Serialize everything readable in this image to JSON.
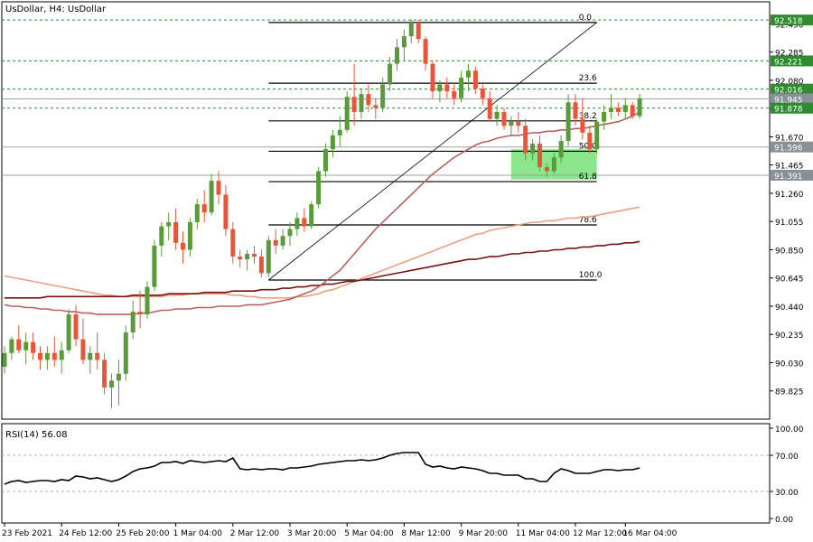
{
  "chart_data": [
    {
      "type": "candlestick",
      "title": "UsDollar, H4:  UsDollar",
      "ylim": [
        89.62,
        92.65
      ],
      "yticks": [
        "92.490",
        "92.285",
        "92.080",
        "91.875",
        "91.670",
        "91.465",
        "91.260",
        "91.055",
        "90.850",
        "90.645",
        "90.440",
        "90.235",
        "90.030",
        "89.825"
      ],
      "xlabels": [
        "23 Feb 2021",
        "24 Feb 12:00",
        "25 Feb 20:00",
        "1 Mar 04:00",
        "2 Mar 12:00",
        "3 Mar 20:00",
        "5 Mar 04:00",
        "8 Mar 12:00",
        "9 Mar 20:00",
        "11 Mar 04:00",
        "12 Mar 12:00",
        "16 Mar 04:00"
      ],
      "candles": [
        [
          90.0,
          90.15,
          89.95,
          90.1
        ],
        [
          90.1,
          90.22,
          90.05,
          90.2
        ],
        [
          90.2,
          90.3,
          90.1,
          90.12
        ],
        [
          90.12,
          90.25,
          90.02,
          90.18
        ],
        [
          90.18,
          90.25,
          90.05,
          90.1
        ],
        [
          90.1,
          90.15,
          89.98,
          90.05
        ],
        [
          90.05,
          90.15,
          89.98,
          90.1
        ],
        [
          90.1,
          90.22,
          90.0,
          90.05
        ],
        [
          90.05,
          90.18,
          89.95,
          90.12
        ],
        [
          90.12,
          90.42,
          90.1,
          90.38
        ],
        [
          90.38,
          90.45,
          90.15,
          90.2
        ],
        [
          90.2,
          90.35,
          90.02,
          90.05
        ],
        [
          90.05,
          90.15,
          89.95,
          90.1
        ],
        [
          90.1,
          90.25,
          89.98,
          90.05
        ],
        [
          90.05,
          90.1,
          89.8,
          89.85
        ],
        [
          89.85,
          89.95,
          89.7,
          89.9
        ],
        [
          89.9,
          90.05,
          89.72,
          89.95
        ],
        [
          89.95,
          90.3,
          89.9,
          90.25
        ],
        [
          90.25,
          90.48,
          90.2,
          90.4
        ],
        [
          90.4,
          90.55,
          90.28,
          90.38
        ],
        [
          90.38,
          90.62,
          90.35,
          90.58
        ],
        [
          90.58,
          90.92,
          90.55,
          90.88
        ],
        [
          90.88,
          91.05,
          90.8,
          91.02
        ],
        [
          91.02,
          91.12,
          90.92,
          91.05
        ],
        [
          91.05,
          91.15,
          90.85,
          90.9
        ],
        [
          90.9,
          90.98,
          90.75,
          90.85
        ],
        [
          90.85,
          91.08,
          90.8,
          91.05
        ],
        [
          91.05,
          91.22,
          91.0,
          91.18
        ],
        [
          91.18,
          91.28,
          91.05,
          91.12
        ],
        [
          91.12,
          91.4,
          91.1,
          91.35
        ],
        [
          91.35,
          91.42,
          91.18,
          91.25
        ],
        [
          91.25,
          91.32,
          90.95,
          91.0
        ],
        [
          91.0,
          91.05,
          90.75,
          90.8
        ],
        [
          90.8,
          90.85,
          90.72,
          90.78
        ],
        [
          90.78,
          90.85,
          90.7,
          90.82
        ],
        [
          90.82,
          90.88,
          90.75,
          90.8
        ],
        [
          90.8,
          90.85,
          90.65,
          90.68
        ],
        [
          90.68,
          90.95,
          90.65,
          90.92
        ],
        [
          90.92,
          91.0,
          90.82,
          90.88
        ],
        [
          90.88,
          91.0,
          90.85,
          90.95
        ],
        [
          90.95,
          91.05,
          90.88,
          91.0
        ],
        [
          91.0,
          91.12,
          90.95,
          91.08
        ],
        [
          91.08,
          91.15,
          90.98,
          91.02
        ],
        [
          91.02,
          91.2,
          91.0,
          91.18
        ],
        [
          91.18,
          91.45,
          91.15,
          91.42
        ],
        [
          91.42,
          91.62,
          91.38,
          91.58
        ],
        [
          91.58,
          91.72,
          91.52,
          91.68
        ],
        [
          91.68,
          91.82,
          91.6,
          91.72
        ],
        [
          91.72,
          92.0,
          91.7,
          91.96
        ],
        [
          91.96,
          92.2,
          91.75,
          91.85
        ],
        [
          91.85,
          92.02,
          91.8,
          91.98
        ],
        [
          91.98,
          92.05,
          91.85,
          91.9
        ],
        [
          91.9,
          91.95,
          91.8,
          91.88
        ],
        [
          91.88,
          92.1,
          91.85,
          92.05
        ],
        [
          92.05,
          92.25,
          92.0,
          92.2
        ],
        [
          92.2,
          92.38,
          92.15,
          92.32
        ],
        [
          92.32,
          92.45,
          92.22,
          92.4
        ],
        [
          92.4,
          92.52,
          92.35,
          92.5
        ],
        [
          92.5,
          92.52,
          92.35,
          92.38
        ],
        [
          92.38,
          92.4,
          92.15,
          92.2
        ],
        [
          92.2,
          92.22,
          91.95,
          92.0
        ],
        [
          92.0,
          92.08,
          91.92,
          92.05
        ],
        [
          92.05,
          92.1,
          91.95,
          92.0
        ],
        [
          92.0,
          92.05,
          91.9,
          91.95
        ],
        [
          91.95,
          92.15,
          91.92,
          92.1
        ],
        [
          92.1,
          92.2,
          92.0,
          92.15
        ],
        [
          92.15,
          92.18,
          91.98,
          92.02
        ],
        [
          92.02,
          92.05,
          91.9,
          91.95
        ],
        [
          91.95,
          92.0,
          91.78,
          91.8
        ],
        [
          91.8,
          91.9,
          91.75,
          91.85
        ],
        [
          91.85,
          91.88,
          91.72,
          91.75
        ],
        [
          91.75,
          91.82,
          91.68,
          91.78
        ],
        [
          91.78,
          91.85,
          91.7,
          91.75
        ],
        [
          91.75,
          91.8,
          91.5,
          91.55
        ],
        [
          91.55,
          91.65,
          91.5,
          91.62
        ],
        [
          91.62,
          91.68,
          91.42,
          91.45
        ],
        [
          91.45,
          91.48,
          91.38,
          91.42
        ],
        [
          91.42,
          91.55,
          91.4,
          91.52
        ],
        [
          91.52,
          91.68,
          91.48,
          91.64
        ],
        [
          91.64,
          91.98,
          91.6,
          91.92
        ],
        [
          91.92,
          91.98,
          91.75,
          91.8
        ],
        [
          91.8,
          91.95,
          91.65,
          91.7
        ],
        [
          91.7,
          91.75,
          91.55,
          91.58
        ],
        [
          91.58,
          91.8,
          91.55,
          91.78
        ],
        [
          91.78,
          91.9,
          91.72,
          91.85
        ],
        [
          91.85,
          91.98,
          91.8,
          91.88
        ],
        [
          91.88,
          91.92,
          91.82,
          91.85
        ],
        [
          91.85,
          91.95,
          91.8,
          91.9
        ],
        [
          91.9,
          91.92,
          91.8,
          91.82
        ],
        [
          91.82,
          91.98,
          91.8,
          91.95
        ]
      ],
      "series": [
        {
          "name": "",
          "color": "#e8a07e",
          "values": [
            90.66,
            90.65,
            90.64,
            90.63,
            90.62,
            90.61,
            90.6,
            90.59,
            90.58,
            90.57,
            90.56,
            90.55,
            90.54,
            90.53,
            90.52,
            90.52,
            90.51,
            90.51,
            90.51,
            90.51,
            90.51,
            90.51,
            90.51,
            90.52,
            90.52,
            90.52,
            90.53,
            90.53,
            90.53,
            90.53,
            90.53,
            90.53,
            90.52,
            90.52,
            90.51,
            90.51,
            90.5,
            90.5,
            90.5,
            90.5,
            90.5,
            90.51,
            90.51,
            90.52,
            90.53,
            90.55,
            90.56,
            90.58,
            90.6,
            90.62,
            90.64,
            90.66,
            90.68,
            90.7,
            90.72,
            90.74,
            90.76,
            90.78,
            90.8,
            90.82,
            90.84,
            90.86,
            90.88,
            90.9,
            90.92,
            90.94,
            90.96,
            90.97,
            90.99,
            91.0,
            91.01,
            91.02,
            91.03,
            91.04,
            91.05,
            91.05,
            91.06,
            91.06,
            91.07,
            91.08,
            91.08,
            91.09,
            91.09,
            91.1,
            91.11,
            91.12,
            91.13,
            91.14,
            91.15,
            91.16
          ]
        },
        {
          "name": "",
          "color": "#7a1010",
          "values": [
            90.5,
            90.5,
            90.5,
            90.5,
            90.5,
            90.5,
            90.51,
            90.51,
            90.51,
            90.51,
            90.51,
            90.51,
            90.51,
            90.51,
            90.51,
            90.51,
            90.51,
            90.51,
            90.52,
            90.52,
            90.52,
            90.52,
            90.52,
            90.53,
            90.53,
            90.53,
            90.53,
            90.53,
            90.54,
            90.54,
            90.54,
            90.54,
            90.55,
            90.55,
            90.55,
            90.55,
            90.56,
            90.56,
            90.56,
            90.57,
            90.57,
            90.58,
            90.58,
            90.59,
            90.59,
            90.6,
            90.6,
            90.61,
            90.62,
            90.62,
            90.63,
            90.64,
            90.65,
            90.66,
            90.67,
            90.68,
            90.69,
            90.7,
            90.71,
            90.72,
            90.73,
            90.74,
            90.75,
            90.76,
            90.77,
            90.78,
            90.78,
            90.79,
            90.8,
            90.8,
            90.81,
            90.82,
            90.82,
            90.83,
            90.83,
            90.84,
            90.84,
            90.85,
            90.85,
            90.86,
            90.86,
            90.87,
            90.87,
            90.88,
            90.88,
            90.89,
            90.89,
            90.9,
            90.9,
            90.91
          ]
        },
        {
          "name": "",
          "color": "#b86060",
          "values": [
            90.45,
            90.44,
            90.44,
            90.43,
            90.43,
            90.42,
            90.42,
            90.41,
            90.41,
            90.4,
            90.4,
            90.39,
            90.39,
            90.38,
            90.38,
            90.38,
            90.38,
            90.38,
            90.38,
            90.39,
            90.39,
            90.4,
            90.41,
            90.41,
            90.42,
            90.42,
            90.42,
            90.43,
            90.43,
            90.43,
            90.44,
            90.44,
            90.44,
            90.44,
            90.45,
            90.45,
            90.45,
            90.46,
            90.47,
            90.48,
            90.49,
            90.51,
            90.53,
            90.55,
            90.58,
            90.62,
            90.66,
            90.7,
            90.76,
            90.82,
            90.88,
            90.94,
            91.0,
            91.05,
            91.1,
            91.15,
            91.2,
            91.25,
            91.3,
            91.35,
            91.4,
            91.44,
            91.48,
            91.52,
            91.55,
            91.58,
            91.61,
            91.63,
            91.64,
            91.66,
            91.67,
            91.68,
            91.68,
            91.69,
            91.7,
            91.7,
            91.71,
            91.71,
            91.72,
            91.72,
            91.73,
            91.73,
            91.74,
            91.75,
            91.76,
            91.77,
            91.78,
            91.8,
            91.82,
            91.85
          ]
        }
      ],
      "fibonacci": {
        "low": 90.63,
        "high": 92.5,
        "levels": [
          {
            "label": "0.0",
            "ratio": 0.0
          },
          {
            "label": "23.6",
            "ratio": 0.236
          },
          {
            "label": "38.2",
            "ratio": 0.382
          },
          {
            "label": "50.0",
            "ratio": 0.5
          },
          {
            "label": "61.8",
            "ratio": 0.618
          },
          {
            "label": "78.6",
            "ratio": 0.786
          },
          {
            "label": "100.0",
            "ratio": 1.0
          }
        ]
      },
      "horizontal_lines": [
        {
          "value": 92.518,
          "label": "92.518",
          "color": "#2e8b2e"
        },
        {
          "value": 92.221,
          "label": "92.221",
          "color": "#2e8b2e"
        },
        {
          "value": 92.016,
          "label": "92.016",
          "color": "#2e8b2e"
        },
        {
          "value": 91.945,
          "label": "91.945",
          "color": "#8a9098"
        },
        {
          "value": 91.878,
          "label": "91.878",
          "color": "#2e8b2e"
        },
        {
          "value": 91.596,
          "label": "91.596",
          "color": "#8a9098"
        },
        {
          "value": 91.391,
          "label": "91.391",
          "color": "#8a9098"
        }
      ],
      "highlight_zone": {
        "from": 91.36,
        "to": 91.58,
        "color": "#66dd66"
      },
      "colors": {
        "bull": "#5a9a3a",
        "bear": "#e8553a",
        "grid": "#2e8b2e"
      }
    },
    {
      "type": "line",
      "title": "RSI(14) 56.08",
      "ylim": [
        0,
        100
      ],
      "yticks": [
        "100.00",
        "70.00",
        "30.00",
        "0.00"
      ],
      "levels": [
        70,
        30
      ],
      "values": [
        38,
        41,
        42,
        40,
        41,
        42,
        42,
        41,
        43,
        42,
        47,
        46,
        44,
        45,
        43,
        41,
        43,
        47,
        52,
        55,
        56,
        58,
        62,
        62,
        63,
        61,
        64,
        63,
        62,
        63,
        64,
        63,
        67,
        55,
        54,
        55,
        54,
        55,
        55,
        54,
        56,
        56,
        57,
        58,
        60,
        61,
        62,
        63,
        64,
        64,
        65,
        64,
        65,
        67,
        70,
        72,
        73,
        73,
        73,
        60,
        57,
        58,
        56,
        55,
        57,
        56,
        55,
        53,
        50,
        50,
        48,
        48,
        48,
        44,
        44,
        41,
        41,
        50,
        55,
        53,
        50,
        50,
        50,
        52,
        54,
        54,
        53,
        54,
        54,
        56
      ]
    }
  ]
}
